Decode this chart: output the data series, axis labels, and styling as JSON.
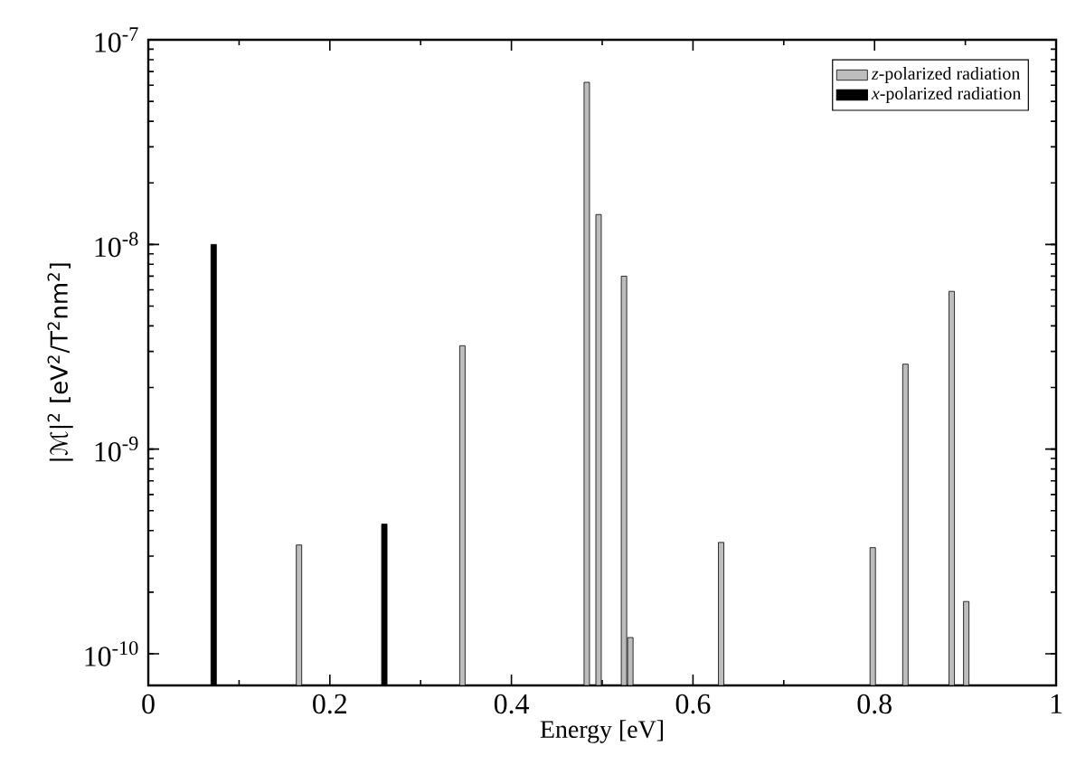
{
  "chart_data": {
    "type": "bar",
    "xlabel": "Energy [eV]",
    "ylabel": "|ℳ|$^{2}$ [eV$^{2}$/T$^{2}$nm$^{2}$]",
    "series": [
      {
        "name": "*z*-polarized radiation",
        "color": "#bdbdbd",
        "x": [
          0.166,
          0.346,
          0.483,
          0.496,
          0.524,
          0.531,
          0.631,
          0.798,
          0.834,
          0.885,
          0.901
        ],
        "values": [
          3.4e-10,
          3.2e-09,
          6.2e-08,
          1.4e-08,
          7e-09,
          1.2e-10,
          3.5e-10,
          3.3e-10,
          2.6e-09,
          5.9e-09,
          1.8e-10
        ]
      },
      {
        "name": "*x*-polarized radiation",
        "color": "#000000",
        "x": [
          0.072,
          0.26
        ],
        "values": [
          1e-08,
          4.3e-10
        ]
      }
    ],
    "log": "y",
    "legend": "top right",
    "xlim": [
      0,
      1
    ],
    "xticks": [
      0,
      0.2,
      0.4,
      0.6,
      0.8,
      1
    ],
    "ylim": [
      7e-11,
      1e-07
    ],
    "yticks": [
      {
        "value": 1e-10,
        "label": "10$^{-10}$"
      },
      {
        "value": 1e-09,
        "label": "10$^{-9}$"
      },
      {
        "value": 1e-08,
        "label": "10$^{-8}$"
      },
      {
        "value": 1e-07,
        "label": "10$^{-7}$"
      }
    ]
  }
}
